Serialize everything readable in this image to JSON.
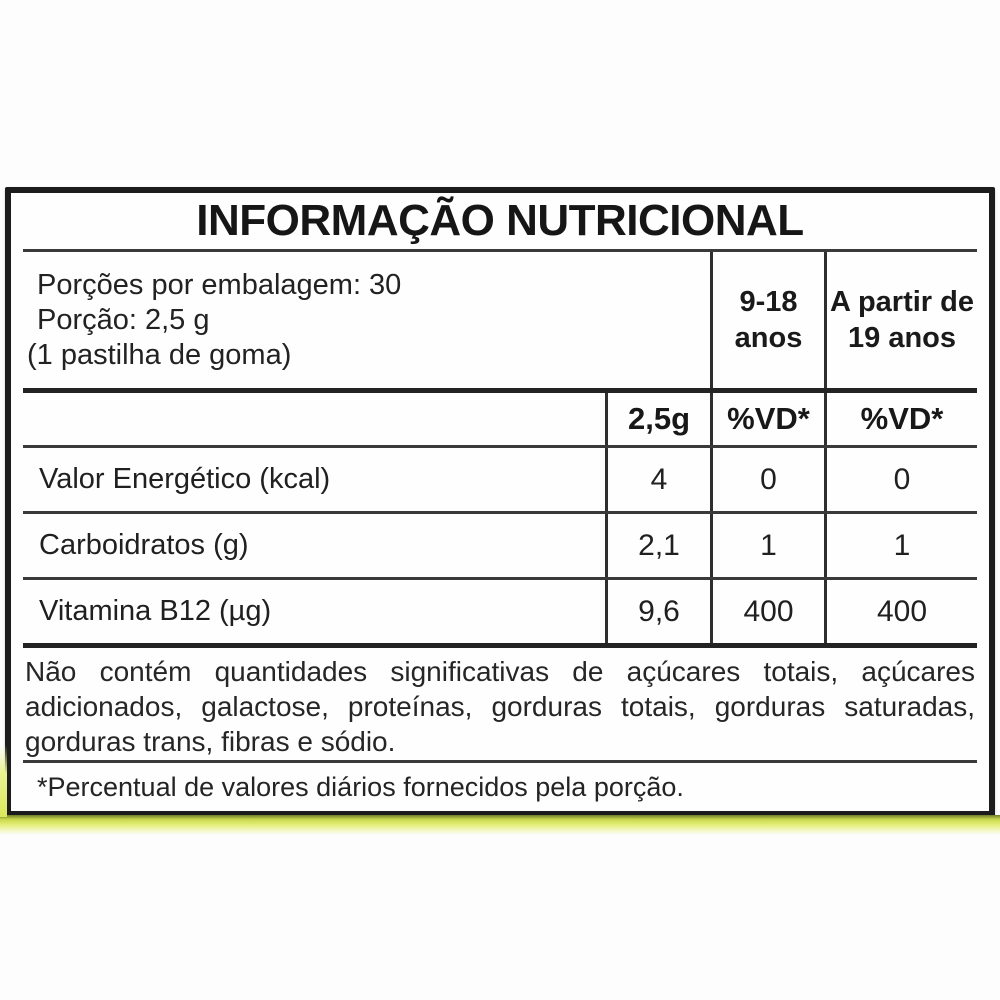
{
  "nutrition_label": {
    "title": "INFORMAÇÃO NUTRICIONAL",
    "serving_info": {
      "servings_per_package": "Porções por embalagem: 30",
      "serving_size": "Porção: 2,5 g",
      "serving_unit": "(1 pastilha de goma)"
    },
    "age_group_headers": [
      {
        "line1": "9-18",
        "line2": "anos"
      },
      {
        "line1": "A partir de",
        "line2": "19 anos"
      }
    ],
    "column_headers": {
      "amount_per_serving": "2,5g",
      "daily_value_9_18": "%VD*",
      "daily_value_19_plus": "%VD*"
    },
    "nutrient_rows": [
      {
        "nutrient": "Valor Energético (kcal)",
        "amount": "4",
        "vd_9_18": "0",
        "vd_19_plus": "0"
      },
      {
        "nutrient": "Carboidratos (g)",
        "amount": "2,1",
        "vd_9_18": "1",
        "vd_19_plus": "1"
      },
      {
        "nutrient": "Vitamina B12 (µg)",
        "amount": "9,6",
        "vd_9_18": "400",
        "vd_19_plus": "400"
      }
    ],
    "disclaimer": "Não contém quantidades significativas de açúcares totais, açúcares adicionados, galactose, proteínas, gorduras totais, gorduras saturadas, gorduras trans, fibras e sódio.",
    "footnote": "*Percentual de valores diários fornecidos pela porção.",
    "colors": {
      "border": "#1c1c1c",
      "rule": "#2e2e2e",
      "text": "#1d1d1d",
      "accent_strip": "#dbe75c"
    }
  }
}
